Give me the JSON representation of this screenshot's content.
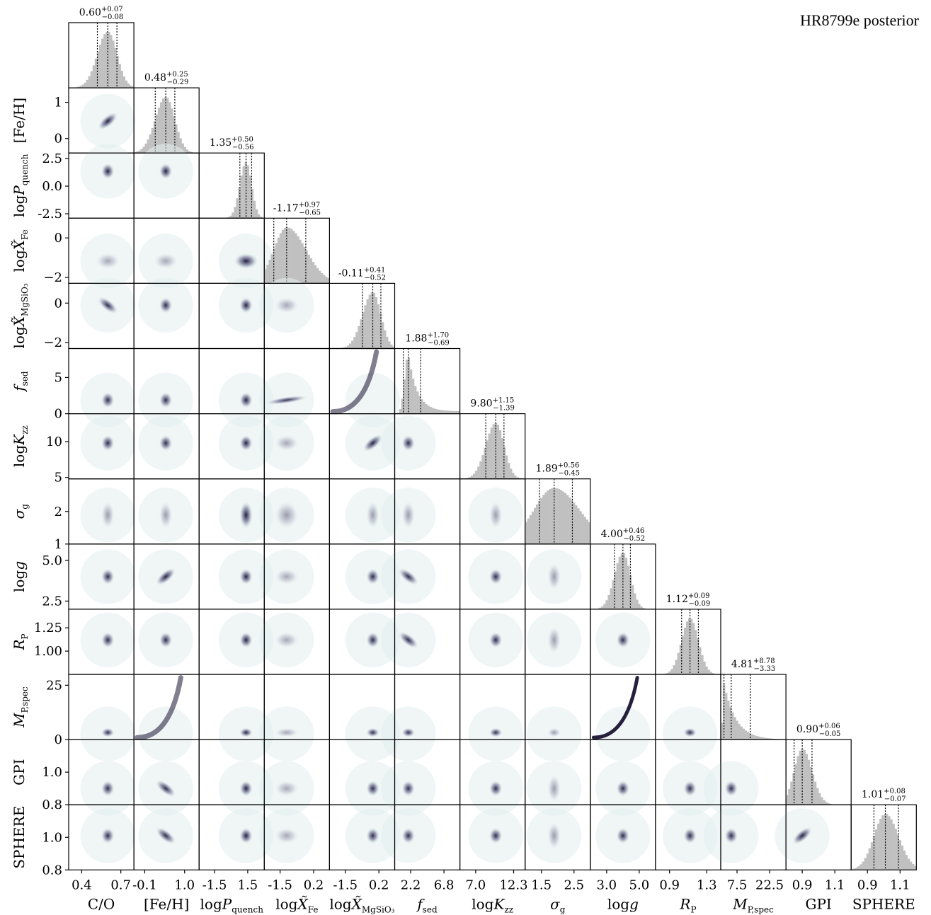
{
  "chart_data": {
    "type": "corner",
    "title": "HR8799e posterior",
    "parameters": [
      {
        "key": "co",
        "label": "C/O",
        "range": [
          0.3,
          0.8
        ],
        "ticks": [
          0.4,
          0.7
        ],
        "tick_labels": [
          "0.4",
          "0.7"
        ],
        "summary": {
          "median": "0.60",
          "plus": "+0.07",
          "minus": "−0.08"
        },
        "median": 0.6,
        "lo": 0.52,
        "hi": 0.67,
        "hist": "normal"
      },
      {
        "key": "feh",
        "label": "[Fe/H]",
        "range": [
          -0.4,
          1.4
        ],
        "ticks": [
          -0.1,
          1.0
        ],
        "tick_labels": [
          "-0.1",
          "1.0"
        ],
        "y_ticks": [
          0,
          1
        ],
        "y_tick_labels": [
          "0",
          "1"
        ],
        "summary": {
          "median": "0.48",
          "plus": "+0.25",
          "minus": "−0.29"
        },
        "median": 0.48,
        "lo": 0.19,
        "hi": 0.73,
        "hist": "normal"
      },
      {
        "key": "logpq",
        "label": "log P_quench",
        "range": [
          -2.9,
          3.0
        ],
        "ticks": [
          -1.5,
          1.5
        ],
        "tick_labels": [
          "-1.5",
          "1.5"
        ],
        "y_ticks": [
          -2.5,
          0.0,
          2.5
        ],
        "y_tick_labels": [
          "-2.5",
          "0.0",
          "2.5"
        ],
        "summary": {
          "median": "1.35",
          "plus": "+0.50",
          "minus": "−0.56"
        },
        "median": 1.35,
        "lo": 0.79,
        "hi": 1.85,
        "hist": "normal"
      },
      {
        "key": "logxfe",
        "label": "log X̃_Fe",
        "range": [
          -2.3,
          1.0
        ],
        "ticks": [
          -1.5,
          0.2
        ],
        "tick_labels": [
          "-1.5",
          "0.2"
        ],
        "y_ticks": [
          -2,
          0
        ],
        "y_tick_labels": [
          "−2",
          "0"
        ],
        "summary": {
          "median": "-1.17",
          "plus": "+0.97",
          "minus": "−0.65"
        },
        "median": -1.17,
        "lo": -1.82,
        "hi": -0.2,
        "hist": "skew-right"
      },
      {
        "key": "logxmg",
        "label": "log X̃_MgSiO3",
        "range": [
          -2.3,
          1.0
        ],
        "ticks": [
          -1.5,
          0.2
        ],
        "tick_labels": [
          "-1.5",
          "0.2"
        ],
        "y_ticks": [
          -2,
          0
        ],
        "y_tick_labels": [
          "−2",
          "0"
        ],
        "summary": {
          "median": "-0.11",
          "plus": "+0.41",
          "minus": "−0.52"
        },
        "median": -0.11,
        "lo": -0.63,
        "hi": 0.3,
        "hist": "skew-left"
      },
      {
        "key": "fsed",
        "label": "f_sed",
        "range": [
          0.0,
          9.0
        ],
        "ticks": [
          2.2,
          6.8
        ],
        "tick_labels": [
          "2.2",
          "6.8"
        ],
        "y_ticks": [
          0,
          5
        ],
        "y_tick_labels": [
          "0",
          "5"
        ],
        "summary": {
          "median": "1.88",
          "plus": "+1.70",
          "minus": "−0.69"
        },
        "median": 1.88,
        "lo": 1.19,
        "hi": 3.58,
        "hist": "fsed"
      },
      {
        "key": "logkzz",
        "label": "log K_zz",
        "range": [
          4.8,
          13.9
        ],
        "ticks": [
          7.0,
          12.3
        ],
        "tick_labels": [
          "7.0",
          "12.3"
        ],
        "y_ticks": [
          5,
          10
        ],
        "y_tick_labels": [
          "5",
          "10"
        ],
        "summary": {
          "median": "9.80",
          "plus": "+1.15",
          "minus": "−1.39"
        },
        "median": 9.8,
        "lo": 8.41,
        "hi": 10.95,
        "hist": "skew-left"
      },
      {
        "key": "sigmag",
        "label": "σ_g",
        "range": [
          1.0,
          3.0
        ],
        "ticks": [
          1.5,
          2.5
        ],
        "tick_labels": [
          "1.5",
          "2.5"
        ],
        "y_ticks": [
          1,
          2
        ],
        "y_tick_labels": [
          "1",
          "2"
        ],
        "summary": {
          "median": "1.89",
          "plus": "+0.56",
          "minus": "−0.45"
        },
        "median": 1.89,
        "lo": 1.44,
        "hi": 2.45,
        "hist": "broad"
      },
      {
        "key": "logg",
        "label": "log g",
        "range": [
          2.0,
          6.0
        ],
        "ticks": [
          3.0,
          5.0
        ],
        "tick_labels": [
          "3.0",
          "5.0"
        ],
        "y_ticks": [
          2.5,
          5.0
        ],
        "y_tick_labels": [
          "2.5",
          "5.0"
        ],
        "summary": {
          "median": "4.00",
          "plus": "+0.46",
          "minus": "−0.52"
        },
        "median": 4.0,
        "lo": 3.48,
        "hi": 4.46,
        "hist": "normal"
      },
      {
        "key": "rp",
        "label": "R_P",
        "range": [
          0.75,
          1.45
        ],
        "ticks": [
          0.9,
          1.3
        ],
        "tick_labels": [
          "0.9",
          "1.3"
        ],
        "y_ticks": [
          1.0,
          1.25
        ],
        "y_tick_labels": [
          "1.00",
          "1.25"
        ],
        "summary": {
          "median": "1.12",
          "plus": "+0.09",
          "minus": "−0.09"
        },
        "median": 1.12,
        "lo": 1.03,
        "hi": 1.21,
        "hist": "normal"
      },
      {
        "key": "mp",
        "label": "M_P,spec",
        "range": [
          0.0,
          30.0
        ],
        "ticks": [
          7.5,
          22.5
        ],
        "tick_labels": [
          "7.5",
          "22.5"
        ],
        "y_ticks": [
          0,
          25
        ],
        "y_tick_labels": [
          "0",
          "25"
        ],
        "summary": {
          "median": "4.81",
          "plus": "+8.78",
          "minus": "−3.33"
        },
        "median": 4.81,
        "lo": 1.48,
        "hi": 13.59,
        "hist": "mass"
      },
      {
        "key": "gpi",
        "label": "GPI",
        "range": [
          0.8,
          1.2
        ],
        "ticks": [
          0.9,
          1.1
        ],
        "tick_labels": [
          "0.9",
          "1.1"
        ],
        "y_ticks": [
          0.8,
          1.0
        ],
        "y_tick_labels": [
          "0.8",
          "1.0"
        ],
        "summary": {
          "median": "0.90",
          "plus": "+0.06",
          "minus": "−0.05"
        },
        "median": 0.9,
        "lo": 0.85,
        "hi": 0.96,
        "hist": "skew-right"
      },
      {
        "key": "sphere",
        "label": "SPHERE",
        "range": [
          0.8,
          1.2
        ],
        "ticks": [
          0.9,
          1.1
        ],
        "tick_labels": [
          "0.9",
          "1.1"
        ],
        "y_ticks": [
          0.8,
          1.0
        ],
        "y_tick_labels": [
          "0.8",
          "1.0"
        ],
        "summary": {
          "median": "1.01",
          "plus": "+0.08",
          "minus": "−0.07"
        },
        "median": 1.01,
        "lo": 0.94,
        "hi": 1.09,
        "hist": "normal"
      }
    ],
    "panel_style": {
      "Fe/H|C/O": "corr+",
      "logg|Fe/H": "corr+",
      "M_P,spec|Fe/H": "curve",
      "log X_MgSiO3|C/O": "corr-",
      "log K_zz|log X_MgSiO3": "corr+",
      "f_sed|log X_Fe": "strip",
      "f_sed|log X_MgSiO3": "curve",
      "R_P|f_sed": "corr-",
      "log g|f_sed": "corr-",
      "M_P,spec|log g": "curve-strong",
      "SPHERE|GPI": "corr+",
      "GPI|Fe/H": "corr-",
      "SPHERE|Fe/H": "corr-"
    },
    "colors": {
      "hist": "#c0c0c0",
      "density": "#1a1433",
      "quantile_line": "#000000",
      "frame": "#000000"
    },
    "grid": false
  }
}
